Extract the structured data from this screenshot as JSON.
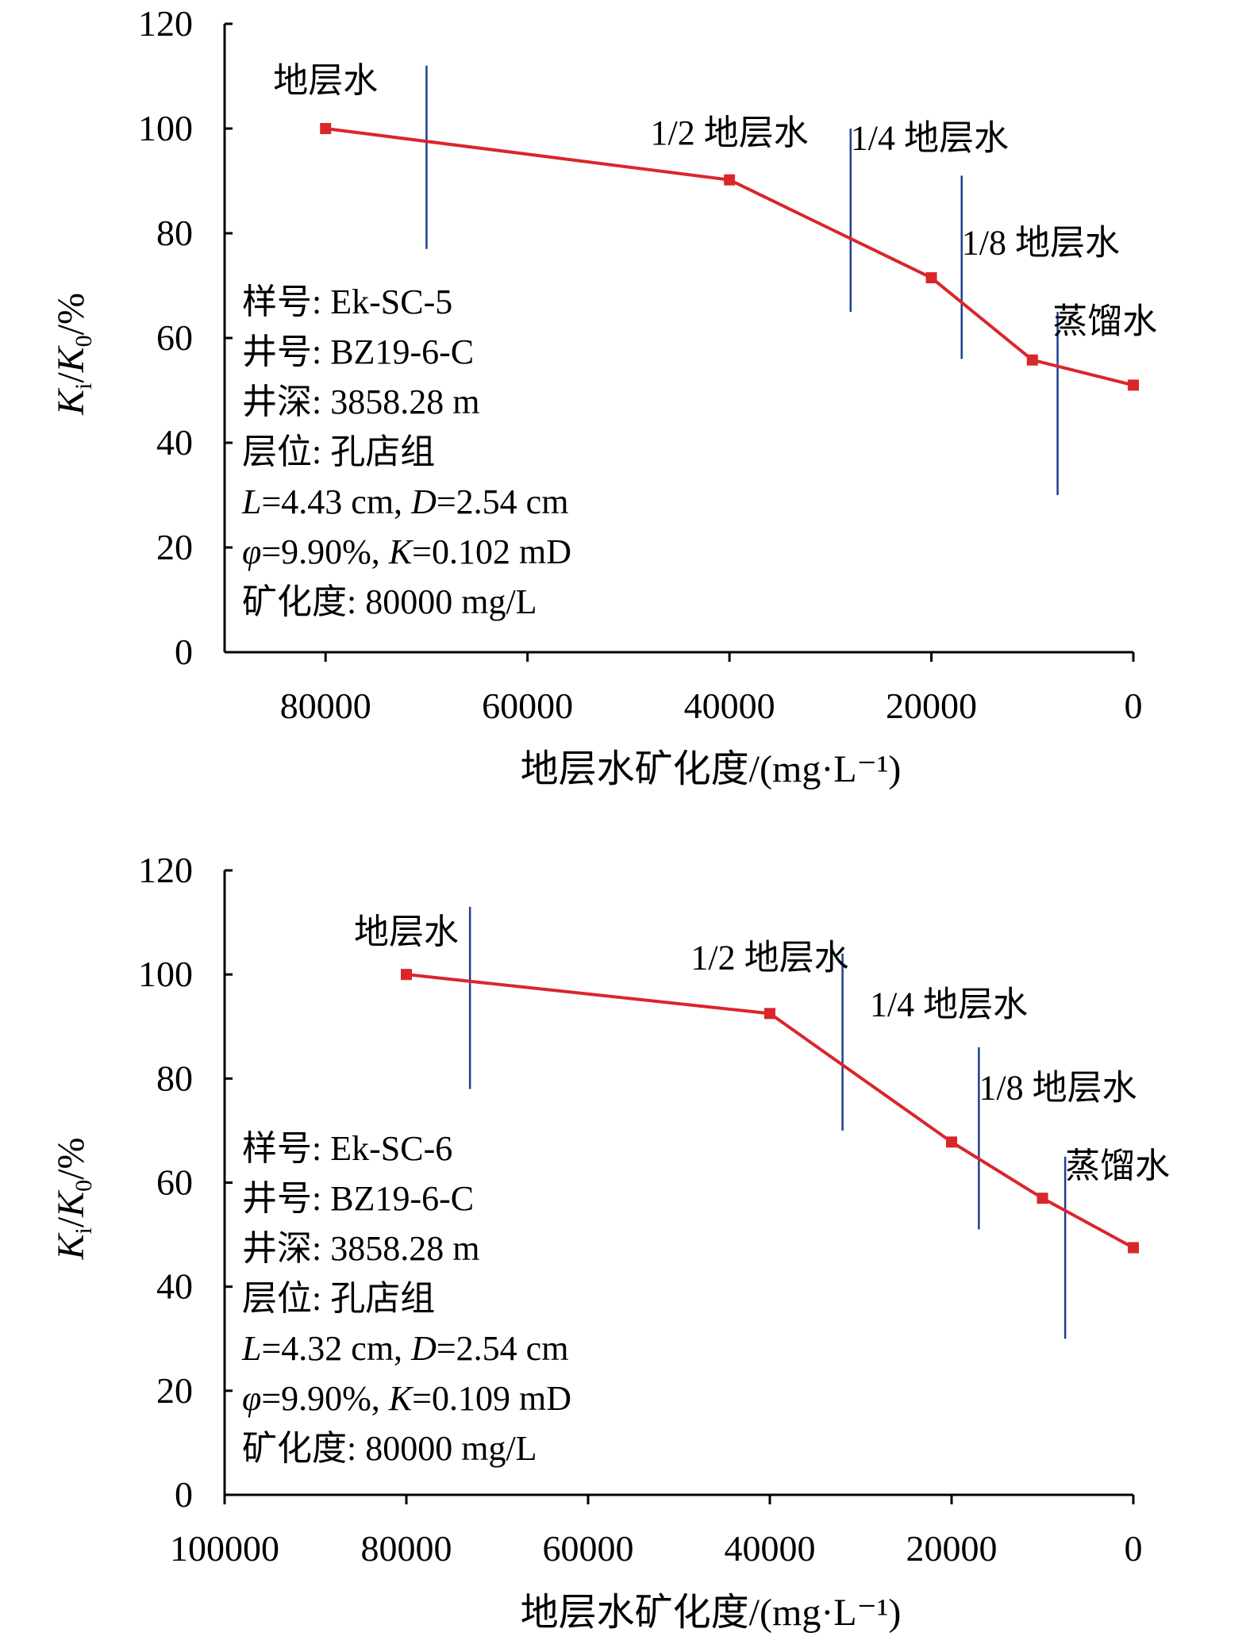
{
  "colors": {
    "series": "#d9262b",
    "divider": "#1f3f8f",
    "axis": "#000000"
  },
  "chart_data": [
    {
      "type": "line",
      "xlabel": "地层水矿化度/(mg·L⁻¹)",
      "ylabel": "Ki/K0/%",
      "x_reversed": true,
      "xlim": [
        90000,
        0
      ],
      "ylim": [
        0,
        120
      ],
      "x_ticks": [
        80000,
        60000,
        40000,
        20000,
        0
      ],
      "x_tick_labels": [
        "80000",
        "60000",
        "40000",
        "20000",
        "0"
      ],
      "y_ticks": [
        0,
        20,
        40,
        60,
        80,
        100,
        120
      ],
      "y_tick_labels": [
        "0",
        "20",
        "40",
        "60",
        "80",
        "100",
        "120"
      ],
      "x": [
        80000,
        40000,
        20000,
        10000,
        0
      ],
      "y": [
        100,
        90.2,
        71.5,
        55.8,
        51
      ],
      "stage_labels": [
        {
          "text": "地层水",
          "x": 80000,
          "y": 107
        },
        {
          "text": "1/2 地层水",
          "x": 40000,
          "y": 97
        },
        {
          "text": "1/4 地层水",
          "x": 28000,
          "y": 96
        },
        {
          "text": "1/8 地层水",
          "x": 17000,
          "y": 76
        },
        {
          "text": "蒸馏水",
          "x": 8000,
          "y": 61
        }
      ],
      "stage_dividers": [
        {
          "x": 70000,
          "y_range": [
            77,
            112
          ]
        },
        {
          "x": 28000,
          "y_range": [
            65,
            100
          ]
        },
        {
          "x": 17000,
          "y_range": [
            56,
            91
          ]
        },
        {
          "x": 7500,
          "y_range": [
            30,
            65
          ]
        }
      ],
      "info_lines": [
        "样号: Ek-SC-5",
        "井号: BZ19-6-C",
        "井深: 3858.28 m",
        "层位: 孔店组",
        "L=4.43 cm, D=2.54 cm",
        "φ=9.90%, K=0.102 mD",
        "矿化度: 80000 mg/L"
      ]
    },
    {
      "type": "line",
      "xlabel": "地层水矿化度/(mg·L⁻¹)",
      "ylabel": "Ki/K0/%",
      "x_reversed": true,
      "xlim": [
        100000,
        0
      ],
      "ylim": [
        0,
        120
      ],
      "x_ticks": [
        100000,
        80000,
        60000,
        40000,
        20000,
        0
      ],
      "x_tick_labels": [
        "100000",
        "80000",
        "60000",
        "40000",
        "20000",
        "0"
      ],
      "y_ticks": [
        0,
        20,
        40,
        60,
        80,
        100,
        120
      ],
      "y_tick_labels": [
        "0",
        "20",
        "40",
        "60",
        "80",
        "100",
        "120"
      ],
      "x": [
        80000,
        40000,
        20000,
        10000,
        0
      ],
      "y": [
        100,
        92.5,
        67.8,
        57,
        47.5
      ],
      "stage_labels": [
        {
          "text": "地层水",
          "x": 80000,
          "y": 106
        },
        {
          "text": "1/2 地层水",
          "x": 40000,
          "y": 101
        },
        {
          "text": "1/4 地层水",
          "x": 29000,
          "y": 92
        },
        {
          "text": "1/8 地层水",
          "x": 17000,
          "y": 76
        },
        {
          "text": "蒸馏水",
          "x": 7500,
          "y": 61
        }
      ],
      "stage_dividers": [
        {
          "x": 73000,
          "y_range": [
            78,
            113
          ]
        },
        {
          "x": 32000,
          "y_range": [
            70,
            104
          ]
        },
        {
          "x": 17000,
          "y_range": [
            51,
            86
          ]
        },
        {
          "x": 7500,
          "y_range": [
            30,
            65
          ]
        }
      ],
      "info_lines": [
        "样号: Ek-SC-6",
        "井号: BZ19-6-C",
        "井深: 3858.28 m",
        "层位: 孔店组",
        "L=4.32 cm, D=2.54 cm",
        "φ=9.90%, K=0.109 mD",
        "矿化度: 80000 mg/L"
      ]
    }
  ]
}
